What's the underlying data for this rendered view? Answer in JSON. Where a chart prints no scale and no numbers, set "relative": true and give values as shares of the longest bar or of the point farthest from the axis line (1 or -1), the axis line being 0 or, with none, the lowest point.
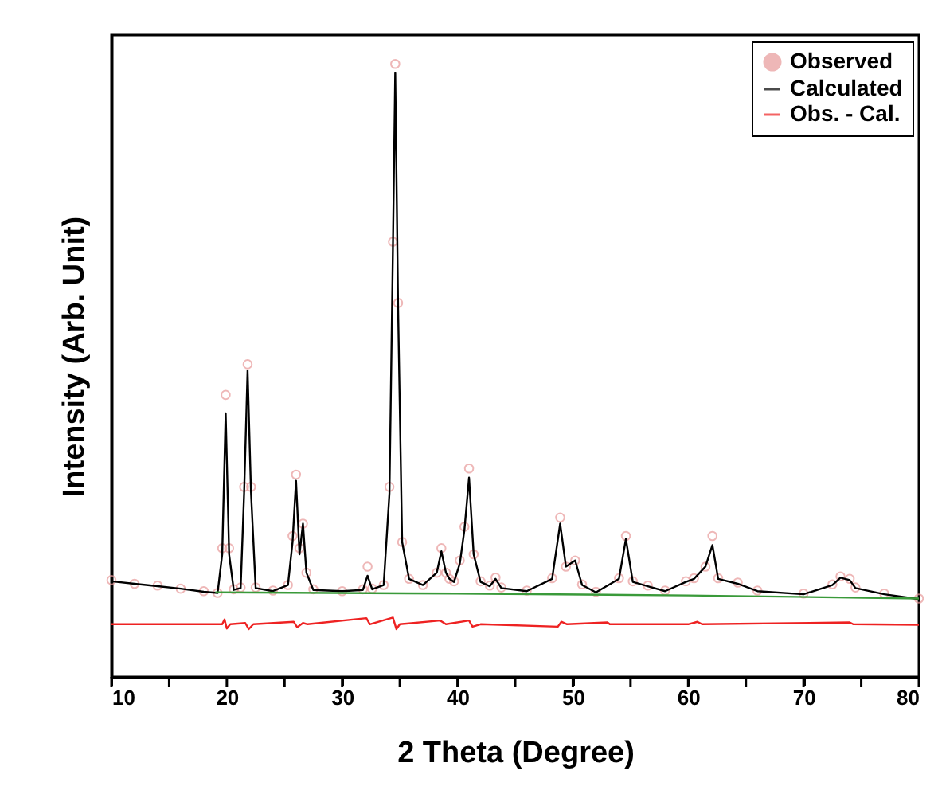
{
  "chart_data": {
    "type": "line",
    "relative": true,
    "xlabel": "2 Theta (Degree)",
    "ylabel": "Intensity (Arb. Unit)",
    "xlim": [
      10,
      80
    ],
    "xticks": [
      10,
      {
        "value": 15,
        "label": null
      },
      20,
      {
        "value": 25,
        "label": null
      },
      30,
      {
        "value": 35,
        "label": null
      },
      40,
      {
        "value": 45,
        "label": null
      },
      50,
      {
        "value": 55,
        "label": null
      },
      60,
      {
        "value": 65,
        "label": null
      },
      70,
      {
        "value": 75,
        "label": null
      },
      80
    ],
    "grid": false,
    "legend": "top right",
    "series": [
      {
        "name": "Observed",
        "type": "scatter",
        "marker": "circle",
        "color": "#e89a9a",
        "x": [
          10,
          12,
          14,
          16,
          18,
          19.2,
          19.6,
          19.9,
          20.2,
          20.6,
          21.2,
          21.5,
          21.8,
          22.1,
          22.5,
          24,
          25.3,
          25.7,
          26.0,
          26.3,
          26.6,
          26.9,
          27.5,
          30,
          31.8,
          32.2,
          32.6,
          33.6,
          34.1,
          34.4,
          34.6,
          34.85,
          35.2,
          35.8,
          37,
          38.2,
          38.6,
          39.0,
          39.3,
          39.7,
          40.2,
          40.6,
          41.0,
          41.4,
          42,
          42.8,
          43.3,
          43.8,
          46,
          48.2,
          48.9,
          49.4,
          50.2,
          50.8,
          52,
          54,
          54.6,
          55.2,
          56.5,
          58,
          59.8,
          60.5,
          61.5,
          62.1,
          62.6,
          64.3,
          66,
          70,
          72.5,
          73.2,
          74,
          74.5,
          77,
          80
        ],
        "values": [
          0.158,
          0.152,
          0.149,
          0.144,
          0.14,
          0.137,
          0.21,
          0.46,
          0.21,
          0.143,
          0.146,
          0.31,
          0.51,
          0.31,
          0.146,
          0.141,
          0.15,
          0.23,
          0.33,
          0.21,
          0.25,
          0.17,
          0.143,
          0.14,
          0.143,
          0.18,
          0.144,
          0.15,
          0.31,
          0.71,
          1.0,
          0.61,
          0.22,
          0.16,
          0.15,
          0.17,
          0.21,
          0.17,
          0.16,
          0.156,
          0.19,
          0.245,
          0.34,
          0.2,
          0.156,
          0.149,
          0.162,
          0.146,
          0.141,
          0.161,
          0.26,
          0.18,
          0.19,
          0.151,
          0.139,
          0.161,
          0.23,
          0.156,
          0.149,
          0.141,
          0.156,
          0.161,
          0.18,
          0.23,
          0.161,
          0.154,
          0.141,
          0.136,
          0.151,
          0.164,
          0.16,
          0.146,
          0.136,
          0.128
        ]
      },
      {
        "name": "Calculated",
        "color": "#000000",
        "x": [
          10,
          12,
          14,
          16,
          18,
          19.2,
          19.6,
          19.9,
          20.2,
          20.6,
          21.2,
          21.5,
          21.8,
          22.1,
          22.5,
          24,
          25.3,
          25.7,
          26.0,
          26.3,
          26.6,
          26.9,
          27.5,
          30,
          31.8,
          32.2,
          32.6,
          33.6,
          34.1,
          34.4,
          34.6,
          34.85,
          35.2,
          35.8,
          37,
          38.2,
          38.6,
          39.0,
          39.3,
          39.7,
          40.2,
          40.6,
          41.0,
          41.4,
          42,
          42.8,
          43.3,
          43.8,
          46,
          48.2,
          48.9,
          49.4,
          50.2,
          50.8,
          52,
          54,
          54.6,
          55.2,
          56.5,
          58,
          59.8,
          60.5,
          61.5,
          62.1,
          62.6,
          64.3,
          66,
          70,
          72.5,
          73.2,
          74,
          74.5,
          77,
          80
        ],
        "values": [
          0.156,
          0.152,
          0.148,
          0.144,
          0.139,
          0.137,
          0.2,
          0.43,
          0.2,
          0.142,
          0.145,
          0.3,
          0.5,
          0.3,
          0.145,
          0.14,
          0.15,
          0.22,
          0.32,
          0.2,
          0.25,
          0.17,
          0.142,
          0.14,
          0.142,
          0.165,
          0.143,
          0.15,
          0.3,
          0.7,
          0.985,
          0.6,
          0.22,
          0.16,
          0.15,
          0.17,
          0.205,
          0.17,
          0.16,
          0.155,
          0.185,
          0.24,
          0.325,
          0.2,
          0.155,
          0.148,
          0.16,
          0.145,
          0.14,
          0.16,
          0.25,
          0.18,
          0.19,
          0.15,
          0.138,
          0.16,
          0.225,
          0.155,
          0.148,
          0.14,
          0.155,
          0.16,
          0.18,
          0.215,
          0.16,
          0.152,
          0.14,
          0.135,
          0.15,
          0.162,
          0.158,
          0.145,
          0.135,
          0.127
        ]
      },
      {
        "color": "#3a9a3a",
        "x": [
          19,
          40,
          60,
          80
        ],
        "values": [
          0.138,
          0.136,
          0.133,
          0.128
        ]
      },
      {
        "name": "Obs. - Cal.",
        "color": "#ee2222",
        "x": [
          10,
          19.6,
          19.8,
          20.0,
          20.3,
          21.6,
          21.9,
          22.3,
          25.8,
          26.1,
          26.6,
          27,
          32.1,
          32.4,
          34.4,
          34.7,
          35,
          38.5,
          39,
          41,
          41.3,
          42,
          48.7,
          49,
          49.5,
          53,
          53.2,
          60,
          60.8,
          61.2,
          74,
          74.3,
          80
        ],
        "values": [
          0.086,
          0.086,
          0.094,
          0.079,
          0.086,
          0.088,
          0.078,
          0.086,
          0.09,
          0.081,
          0.088,
          0.086,
          0.096,
          0.086,
          0.097,
          0.078,
          0.086,
          0.092,
          0.086,
          0.092,
          0.082,
          0.086,
          0.082,
          0.09,
          0.086,
          0.089,
          0.086,
          0.086,
          0.09,
          0.086,
          0.089,
          0.086,
          0.085
        ]
      }
    ]
  }
}
